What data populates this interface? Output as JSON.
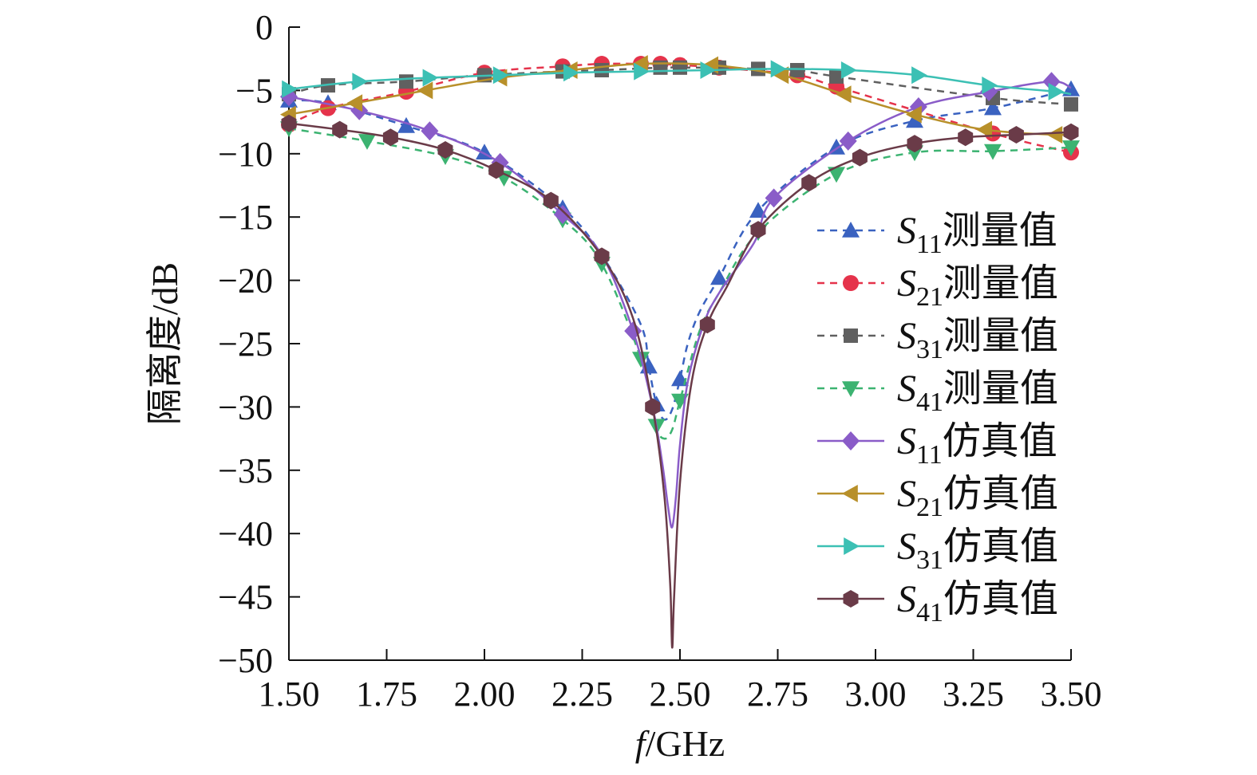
{
  "chart_data": {
    "type": "line",
    "title": "",
    "xlabel_italic": "f",
    "xlabel_rest": "/GHz",
    "ylabel": "隔离度/dB",
    "xlim": [
      1.5,
      3.5
    ],
    "ylim": [
      -50,
      0
    ],
    "xticks": [
      "1.50",
      "1.75",
      "2.00",
      "2.25",
      "2.50",
      "2.75",
      "3.00",
      "3.25",
      "3.50"
    ],
    "yticks": [
      "0",
      "−5",
      "−10",
      "−15",
      "−20",
      "−25",
      "−30",
      "−35",
      "−40",
      "−45",
      "−50"
    ],
    "legend_position": "right",
    "series": [
      {
        "name": "S11测量值",
        "sym": "S",
        "sub": "11",
        "label": "测量值",
        "color": "#3a62c0",
        "dash": true,
        "marker": "triangle-up",
        "x": [
          1.5,
          1.6,
          1.8,
          2.0,
          2.2,
          2.3,
          2.4,
          2.42,
          2.44,
          2.46,
          2.48,
          2.5,
          2.52,
          2.55,
          2.6,
          2.7,
          2.9,
          3.1,
          3.3,
          3.5
        ],
        "y": [
          -5.8,
          -6.0,
          -7.8,
          -9.9,
          -14.3,
          -18.0,
          -23.5,
          -26.8,
          -29.8,
          -31.0,
          -30.2,
          -27.8,
          -25.0,
          -22.5,
          -19.8,
          -14.5,
          -9.5,
          -7.4,
          -6.4,
          -4.9
        ],
        "markers_x": [
          1.5,
          1.6,
          1.8,
          2.0,
          2.2,
          2.42,
          2.44,
          2.5,
          2.6,
          2.7,
          2.9,
          3.1,
          3.3,
          3.5
        ]
      },
      {
        "name": "S21测量值",
        "sym": "S",
        "sub": "21",
        "label": "测量值",
        "color": "#e5334b",
        "dash": true,
        "marker": "circle",
        "x": [
          1.5,
          1.6,
          1.8,
          2.0,
          2.2,
          2.3,
          2.4,
          2.45,
          2.5,
          2.6,
          2.8,
          2.9,
          3.3,
          3.5
        ],
        "y": [
          -7.7,
          -6.4,
          -5.1,
          -3.6,
          -3.1,
          -2.9,
          -2.9,
          -2.9,
          -3.0,
          -3.2,
          -3.8,
          -4.7,
          -8.4,
          -9.9
        ],
        "markers_x": [
          1.5,
          1.6,
          1.8,
          2.0,
          2.2,
          2.3,
          2.4,
          2.45,
          2.5,
          2.6,
          2.8,
          2.9,
          3.3,
          3.5
        ]
      },
      {
        "name": "S31测量值",
        "sym": "S",
        "sub": "31",
        "label": "测量值",
        "color": "#606060",
        "dash": true,
        "marker": "square",
        "x": [
          1.5,
          1.6,
          1.8,
          2.0,
          2.2,
          2.3,
          2.45,
          2.5,
          2.6,
          2.7,
          2.8,
          2.9,
          3.3,
          3.5
        ],
        "y": [
          -5.3,
          -4.6,
          -4.3,
          -3.8,
          -3.5,
          -3.4,
          -3.2,
          -3.2,
          -3.2,
          -3.3,
          -3.4,
          -3.9,
          -5.6,
          -6.1
        ],
        "markers_x": [
          1.5,
          1.6,
          1.8,
          2.0,
          2.2,
          2.3,
          2.45,
          2.5,
          2.6,
          2.7,
          2.8,
          2.9,
          3.3,
          3.5
        ]
      },
      {
        "name": "S41测量值",
        "sym": "S",
        "sub": "41",
        "label": "测量值",
        "color": "#3cb371",
        "dash": true,
        "marker": "triangle-down",
        "x": [
          1.5,
          1.7,
          1.9,
          2.05,
          2.2,
          2.3,
          2.4,
          2.44,
          2.46,
          2.48,
          2.5,
          2.55,
          2.6,
          2.7,
          2.9,
          3.1,
          3.3,
          3.5
        ],
        "y": [
          -8.0,
          -9.0,
          -10.2,
          -11.9,
          -15.2,
          -18.7,
          -26.2,
          -31.5,
          -32.5,
          -31.8,
          -29.5,
          -24.0,
          -21.0,
          -16.2,
          -11.6,
          -9.9,
          -9.8,
          -9.5
        ],
        "markers_x": [
          1.5,
          1.7,
          1.9,
          2.05,
          2.2,
          2.3,
          2.4,
          2.44,
          2.5,
          2.7,
          2.9,
          3.1,
          3.3,
          3.5
        ]
      },
      {
        "name": "S11仿真值",
        "sym": "S",
        "sub": "11",
        "label": "仿真值",
        "color": "#8a5cc8",
        "dash": false,
        "marker": "diamond",
        "x": [
          1.5,
          1.68,
          1.86,
          2.04,
          2.2,
          2.3,
          2.38,
          2.43,
          2.455,
          2.47,
          2.48,
          2.49,
          2.5,
          2.52,
          2.56,
          2.6,
          2.69,
          2.74,
          2.93,
          3.11,
          3.29,
          3.45,
          3.5
        ],
        "y": [
          -5.5,
          -6.6,
          -8.2,
          -10.7,
          -14.8,
          -18.0,
          -24.0,
          -30.0,
          -34.5,
          -38.0,
          -39.5,
          -37.0,
          -33.0,
          -28.0,
          -23.5,
          -21.0,
          -17.0,
          -13.5,
          -9.0,
          -6.3,
          -5.1,
          -4.3,
          -4.8
        ],
        "markers_x": [
          1.5,
          1.68,
          1.86,
          2.04,
          2.2,
          2.38,
          2.74,
          2.93,
          3.11,
          3.29,
          3.45
        ]
      },
      {
        "name": "S21仿真值",
        "sym": "S",
        "sub": "21",
        "label": "仿真值",
        "color": "#b8902a",
        "dash": false,
        "marker": "triangle-left",
        "x": [
          1.5,
          1.67,
          1.85,
          2.04,
          2.22,
          2.4,
          2.58,
          2.76,
          2.92,
          3.1,
          3.28,
          3.46,
          3.5
        ],
        "y": [
          -6.9,
          -6.0,
          -5.0,
          -4.0,
          -3.4,
          -2.9,
          -3.0,
          -3.8,
          -5.3,
          -6.9,
          -8.1,
          -8.5,
          -8.4
        ],
        "markers_x": [
          1.5,
          1.67,
          1.85,
          2.04,
          2.22,
          2.4,
          2.58,
          2.76,
          2.92,
          3.1,
          3.28,
          3.46
        ]
      },
      {
        "name": "S31仿真值",
        "sym": "S",
        "sub": "31",
        "label": "仿真值",
        "color": "#3cc0b4",
        "dash": false,
        "marker": "triangle-right",
        "x": [
          1.5,
          1.68,
          1.86,
          2.04,
          2.22,
          2.4,
          2.57,
          2.75,
          2.93,
          3.11,
          3.29,
          3.46,
          3.5
        ],
        "y": [
          -4.9,
          -4.3,
          -4.0,
          -3.8,
          -3.6,
          -3.5,
          -3.4,
          -3.3,
          -3.4,
          -3.8,
          -4.6,
          -5.1,
          -5.3
        ],
        "markers_x": [
          1.5,
          1.68,
          1.86,
          2.04,
          2.22,
          2.4,
          2.57,
          2.75,
          2.93,
          3.11,
          3.29,
          3.46
        ]
      },
      {
        "name": "S41仿真值",
        "sym": "S",
        "sub": "41",
        "label": "仿真值",
        "color": "#6a3b48",
        "dash": false,
        "marker": "hexagon",
        "x": [
          1.5,
          1.63,
          1.76,
          1.9,
          2.03,
          2.17,
          2.3,
          2.38,
          2.43,
          2.46,
          2.475,
          2.48,
          2.485,
          2.5,
          2.53,
          2.57,
          2.62,
          2.7,
          2.83,
          2.96,
          3.1,
          3.23,
          3.36,
          3.5
        ],
        "y": [
          -7.6,
          -8.1,
          -8.7,
          -9.7,
          -11.3,
          -13.7,
          -18.1,
          -23.0,
          -30.0,
          -37.0,
          -44.0,
          -49.0,
          -45.0,
          -36.0,
          -28.0,
          -23.5,
          -20.5,
          -16.0,
          -12.3,
          -10.3,
          -9.2,
          -8.7,
          -8.5,
          -8.3
        ],
        "markers_x": [
          1.5,
          1.63,
          1.76,
          1.9,
          2.03,
          2.17,
          2.3,
          2.43,
          2.57,
          2.7,
          2.83,
          2.96,
          3.1,
          3.23,
          3.36,
          3.5
        ]
      }
    ]
  }
}
